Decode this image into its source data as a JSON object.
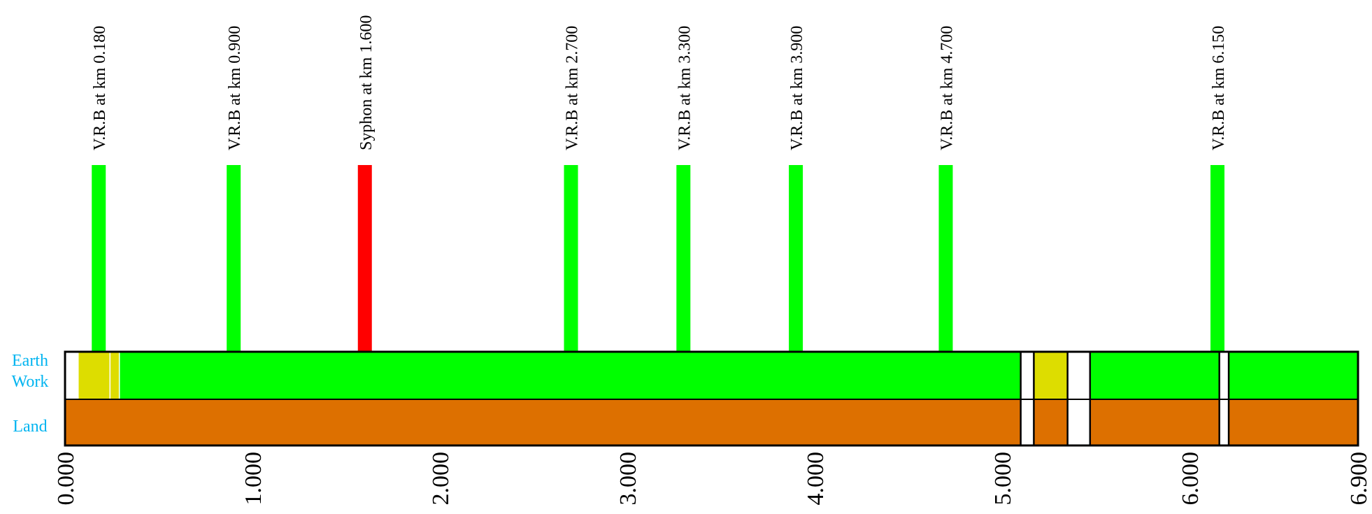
{
  "chart_data": {
    "type": "strip",
    "km_range": [
      0,
      6.9
    ],
    "row_labels": {
      "earth_work": [
        "Earth",
        "Work"
      ],
      "land": "Land"
    },
    "x_ticks": [
      "0.000",
      "1.000",
      "2.000",
      "3.000",
      "4.000",
      "5.000",
      "6.000",
      "6.900"
    ],
    "x_tick_values": [
      0,
      1,
      2,
      3,
      4,
      5,
      6,
      6.9
    ],
    "structures": [
      {
        "label": "V.R.B  at km 0.180",
        "km": 0.18,
        "color": "#00ff00"
      },
      {
        "label": "V.R.B  at km 0.900",
        "km": 0.9,
        "color": "#00ff00"
      },
      {
        "label": "Syphon  at km 1.600",
        "km": 1.6,
        "color": "#ff0000"
      },
      {
        "label": "V.R.B  at km 2.700",
        "km": 2.7,
        "color": "#00ff00"
      },
      {
        "label": "V.R.B  at km 3.300",
        "km": 3.3,
        "color": "#00ff00"
      },
      {
        "label": "V.R.B  at km 3.900",
        "km": 3.9,
        "color": "#00ff00"
      },
      {
        "label": "V.R.B  at km 4.700",
        "km": 4.7,
        "color": "#00ff00"
      },
      {
        "label": "V.R.B  at km 6.150",
        "km": 6.15,
        "color": "#00ff00"
      }
    ],
    "earth_work_segments": [
      {
        "from": 0.07,
        "to": 0.24,
        "color": "#dddd00"
      },
      {
        "from": 0.24,
        "to": 0.29,
        "color": "#dddd00"
      },
      {
        "from": 0.29,
        "to": 5.1,
        "color": "#00ff00"
      },
      {
        "from": 5.17,
        "to": 5.35,
        "color": "#dddd00"
      },
      {
        "from": 5.47,
        "to": 6.16,
        "color": "#00ff00"
      },
      {
        "from": 6.21,
        "to": 6.9,
        "color": "#00ff00"
      }
    ],
    "land_segments": [
      {
        "from": 0.0,
        "to": 5.1,
        "color": "#dd7000"
      },
      {
        "from": 5.17,
        "to": 5.35,
        "color": "#dd7000"
      },
      {
        "from": 5.47,
        "to": 6.16,
        "color": "#dd7000"
      },
      {
        "from": 6.21,
        "to": 6.9,
        "color": "#dd7000"
      }
    ],
    "colors": {
      "complete": "#00ff00",
      "in_progress": "#dddd00",
      "land": "#dd7000",
      "pending": "#ff0000",
      "row_label": "#00b4f0"
    }
  }
}
